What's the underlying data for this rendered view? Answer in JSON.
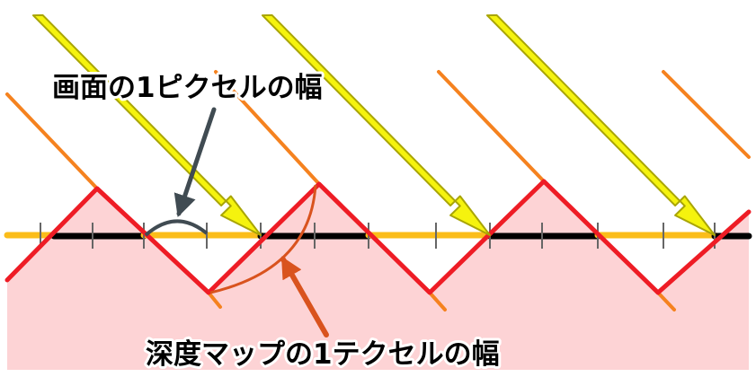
{
  "labels": {
    "screen_pixel_width": "画面の1ピクセルの幅",
    "depth_map_texel_width": "深度マップの1テクセルの幅"
  },
  "colors": {
    "shadow_region": "#fdd3d5",
    "depth_surface": "#ee1c25",
    "light_ray_fill": "#f5f30e",
    "light_ray_outline": "#a9a506",
    "ray_line": "#f5821f",
    "surface_lit": "#fbbd1a",
    "surface_shadowed": "#000000",
    "tick": "#666666",
    "callout_pixel": "#404b52",
    "callout_texel": "#d9531e"
  }
}
